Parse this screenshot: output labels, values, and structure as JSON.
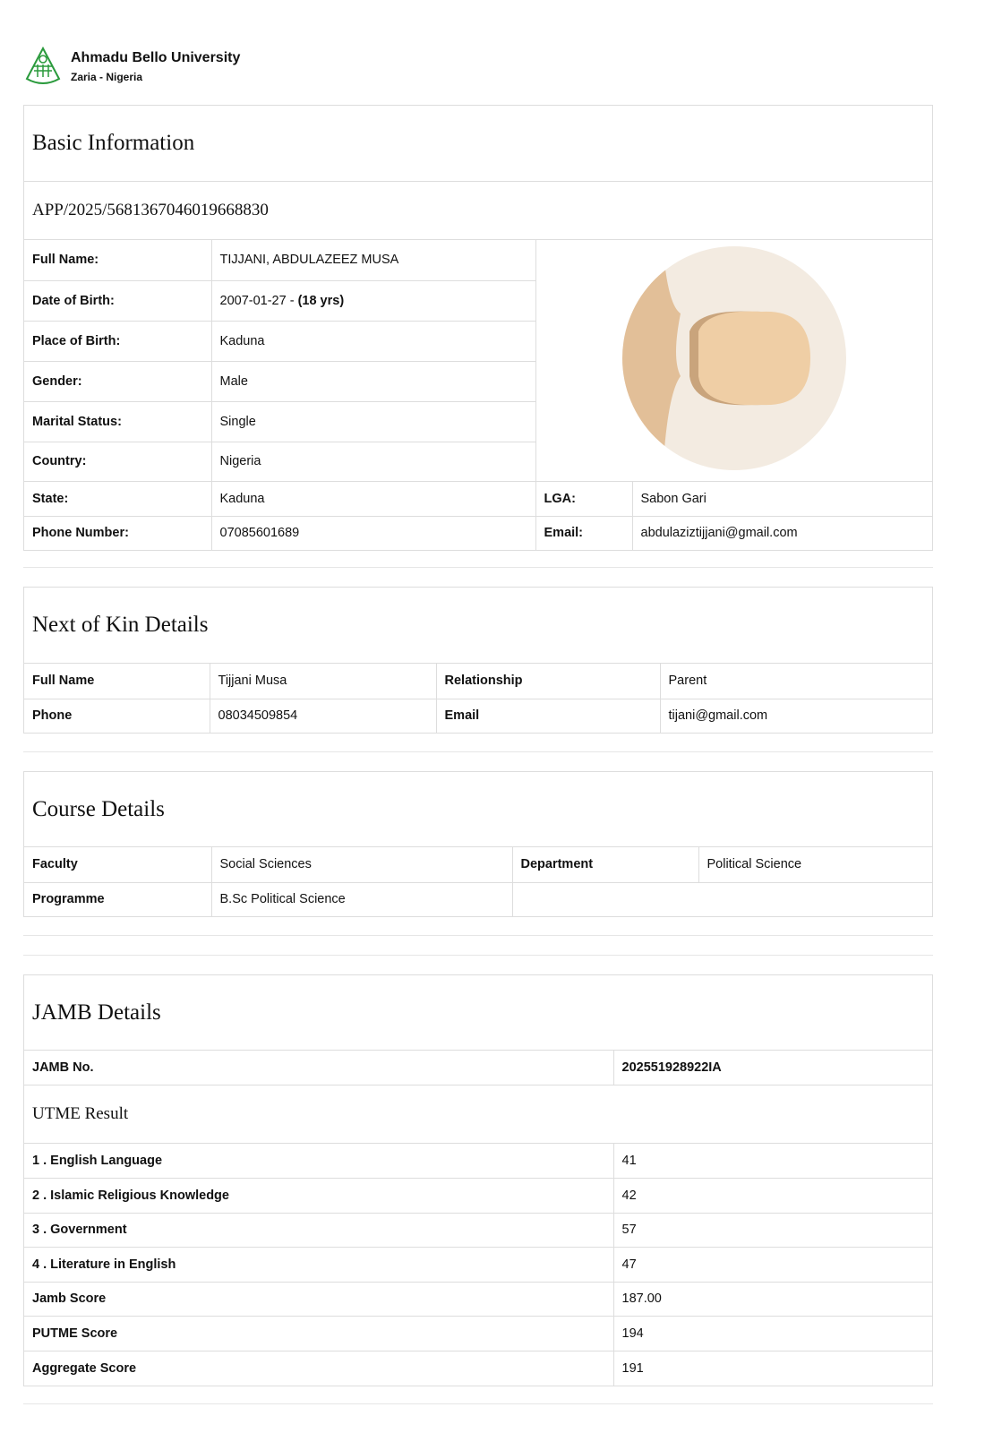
{
  "header": {
    "university": "Ahmadu Bello University",
    "location": "Zaria - Nigeria"
  },
  "basic": {
    "title": "Basic Information",
    "app_no": "APP/2025/5681367046019668830",
    "rows": [
      {
        "label": "Full Name:",
        "value": "TIJJANI, ABDULAZEEZ MUSA"
      },
      {
        "label": "Date of Birth:",
        "value": "2007-01-27 - ",
        "value_extra": "(18 yrs)"
      },
      {
        "label": "Place of Birth:",
        "value": "Kaduna"
      },
      {
        "label": "Gender:",
        "value": "Male"
      },
      {
        "label": "Marital Status:",
        "value": "Single"
      },
      {
        "label": "Country:",
        "value": "Nigeria"
      }
    ],
    "state_label": "State:",
    "state": "Kaduna",
    "lga_label": "LGA:",
    "lga": "Sabon Gari",
    "phone_label": "Phone Number:",
    "phone": "07085601689",
    "email_label": "Email:",
    "email": "abdulaziztijjani@gmail.com"
  },
  "kin": {
    "title": "Next of Kin Details",
    "name_label": "Full Name",
    "name": "Tijjani Musa",
    "rel_label": "Relationship",
    "rel": "Parent",
    "phone_label": "Phone",
    "phone": "08034509854",
    "email_label": "Email",
    "email": "tijani@gmail.com"
  },
  "course": {
    "title": "Course Details",
    "faculty_label": "Faculty",
    "faculty": "Social Sciences",
    "dept_label": "Department",
    "dept": "Political Science",
    "prog_label": "Programme",
    "prog": "B.Sc Political Science"
  },
  "jamb": {
    "title": "JAMB Details",
    "no_label": "JAMB No.",
    "no": "202551928922IA",
    "utme_title": "UTME Result",
    "rows": [
      {
        "label": "1 . English Language",
        "value": "41"
      },
      {
        "label": "2 . Islamic Religious Knowledge",
        "value": "42"
      },
      {
        "label": "3 . Government",
        "value": "57"
      },
      {
        "label": "4 . Literature in English",
        "value": "47"
      },
      {
        "label": "Jamb Score",
        "value": "187.00"
      },
      {
        "label": "PUTME Score",
        "value": "194"
      },
      {
        "label": "Aggregate Score",
        "value": "191"
      }
    ]
  }
}
